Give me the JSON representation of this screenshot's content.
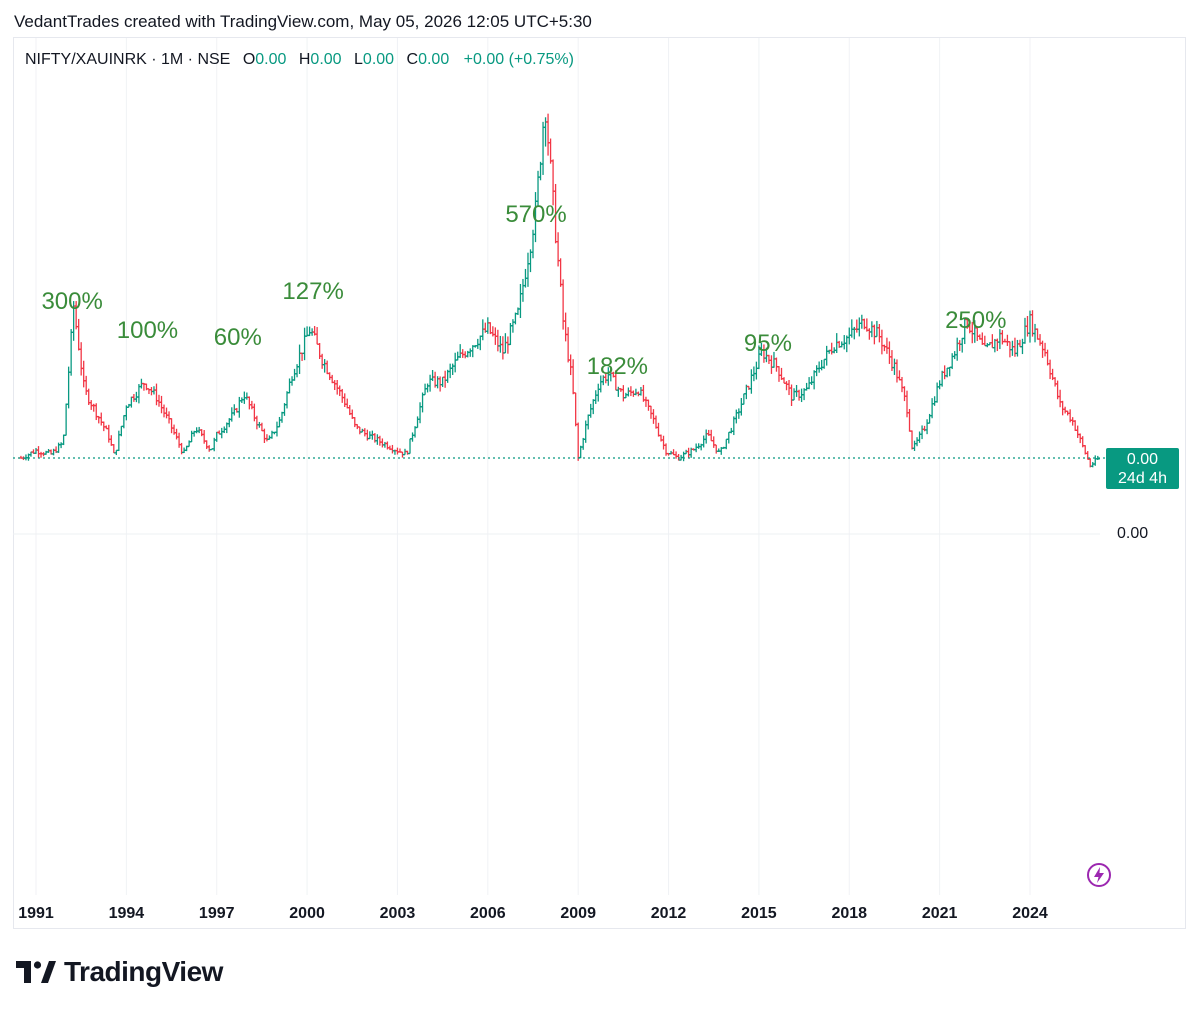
{
  "credit": "VedantTrades created with TradingView.com, May 05, 2026 12:05 UTC+5:30",
  "legend": {
    "symbol": "NIFTY/XAUINRK · 1M · NSE",
    "open_label": "O",
    "open": "0.00",
    "high_label": "H",
    "high": "0.00",
    "low_label": "L",
    "low": "0.00",
    "close_label": "C",
    "close": "0.00",
    "change": "+0.00 (+0.75%)"
  },
  "price_tag": {
    "value": "0.00",
    "countdown": "24d 4h"
  },
  "scale_label": "0.00",
  "brand": "TradingView",
  "colors": {
    "up": "#089981",
    "down": "#f23645",
    "annotation": "#3a8c3a",
    "tag": "#089981"
  },
  "chart_data": {
    "type": "bar",
    "interval": "1M",
    "x_tick_labels": [
      "1991",
      "1994",
      "1997",
      "2000",
      "2003",
      "2006",
      "2009",
      "2012",
      "2015",
      "2018",
      "2021",
      "2024"
    ],
    "x_range": [
      1990.4,
      2026.4
    ],
    "annotations": [
      {
        "text": "300%",
        "x": 1992.2
      },
      {
        "text": "100%",
        "x": 1994.7
      },
      {
        "text": "60%",
        "x": 1997.7
      },
      {
        "text": "127%",
        "x": 2000.2
      },
      {
        "text": "570%",
        "x": 2007.6
      },
      {
        "text": "182%",
        "x": 2010.3
      },
      {
        "text": "95%",
        "x": 2015.3
      },
      {
        "text": "250%",
        "x": 2022.2
      }
    ],
    "close_series": [
      [
        1990.5,
        1.0
      ],
      [
        1991.0,
        1.1
      ],
      [
        1991.5,
        1.05
      ],
      [
        1991.9,
        1.2
      ],
      [
        1992.25,
        3.0
      ],
      [
        1992.6,
        1.9
      ],
      [
        1993.0,
        1.6
      ],
      [
        1993.4,
        1.3
      ],
      [
        1993.6,
        1.02
      ],
      [
        1994.0,
        1.7
      ],
      [
        1994.6,
        2.0
      ],
      [
        1995.0,
        1.8
      ],
      [
        1995.5,
        1.4
      ],
      [
        1995.9,
        1.05
      ],
      [
        1996.3,
        1.4
      ],
      [
        1996.8,
        1.1
      ],
      [
        1997.0,
        1.3
      ],
      [
        1997.6,
        1.6
      ],
      [
        1997.9,
        1.85
      ],
      [
        1998.3,
        1.5
      ],
      [
        1998.7,
        1.2
      ],
      [
        1999.1,
        1.5
      ],
      [
        1999.5,
        2.1
      ],
      [
        1999.9,
        2.5
      ],
      [
        2000.1,
        2.7
      ],
      [
        2000.5,
        2.3
      ],
      [
        2000.9,
        2.0
      ],
      [
        2001.3,
        1.7
      ],
      [
        2001.6,
        1.4
      ],
      [
        2002.0,
        1.3
      ],
      [
        2002.5,
        1.2
      ],
      [
        2003.0,
        1.1
      ],
      [
        2003.3,
        1.05
      ],
      [
        2003.7,
        1.6
      ],
      [
        2004.0,
        2.0
      ],
      [
        2004.5,
        2.0
      ],
      [
        2005.0,
        2.3
      ],
      [
        2005.5,
        2.5
      ],
      [
        2006.0,
        2.7
      ],
      [
        2006.5,
        2.4
      ],
      [
        2007.0,
        2.9
      ],
      [
        2007.4,
        3.8
      ],
      [
        2007.6,
        4.3
      ],
      [
        2007.9,
        5.7
      ],
      [
        2008.2,
        4.2
      ],
      [
        2008.5,
        2.8
      ],
      [
        2008.8,
        2.0
      ],
      [
        2009.0,
        1.0
      ],
      [
        2009.3,
        1.5
      ],
      [
        2009.7,
        2.0
      ],
      [
        2010.0,
        2.1
      ],
      [
        2010.5,
        1.82
      ],
      [
        2011.0,
        1.9
      ],
      [
        2011.5,
        1.5
      ],
      [
        2011.9,
        1.1
      ],
      [
        2012.3,
        1.0
      ],
      [
        2012.8,
        1.1
      ],
      [
        2013.3,
        1.3
      ],
      [
        2013.7,
        1.05
      ],
      [
        2014.2,
        1.5
      ],
      [
        2014.7,
        2.0
      ],
      [
        2015.1,
        2.4
      ],
      [
        2015.6,
        2.2
      ],
      [
        2016.1,
        1.8
      ],
      [
        2016.6,
        1.9
      ],
      [
        2017.0,
        2.2
      ],
      [
        2017.5,
        2.5
      ],
      [
        2018.0,
        2.6
      ],
      [
        2018.5,
        2.8
      ],
      [
        2019.0,
        2.6
      ],
      [
        2019.5,
        2.2
      ],
      [
        2019.9,
        1.7
      ],
      [
        2020.1,
        1.1
      ],
      [
        2020.5,
        1.4
      ],
      [
        2021.0,
        2.0
      ],
      [
        2021.5,
        2.4
      ],
      [
        2021.9,
        2.8
      ],
      [
        2022.5,
        2.4
      ],
      [
        2023.0,
        2.6
      ],
      [
        2023.5,
        2.4
      ],
      [
        2024.0,
        2.8
      ],
      [
        2024.5,
        2.4
      ],
      [
        2025.0,
        1.7
      ],
      [
        2025.4,
        1.5
      ],
      [
        2025.8,
        1.1
      ],
      [
        2026.0,
        0.9
      ],
      [
        2026.3,
        1.0
      ]
    ]
  }
}
